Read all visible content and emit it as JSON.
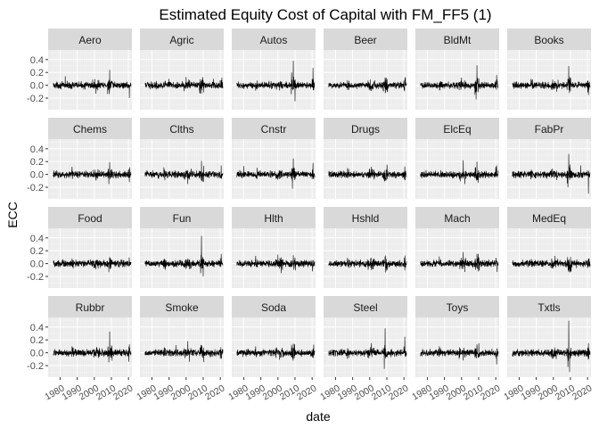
{
  "chart_data": {
    "type": "line",
    "title": "Estimated Equity Cost of Capital with FM_FF5 (1)",
    "xlabel": "date",
    "ylabel": "ECC",
    "xlim": [
      1973,
      2022
    ],
    "ylim": [
      -0.38,
      0.55
    ],
    "x_ticks": [
      1980,
      1990,
      2000,
      2010,
      2020
    ],
    "x_tick_labels": [
      "1980",
      "1990",
      "2000",
      "2010",
      "2020"
    ],
    "y_ticks": [
      -0.2,
      0.0,
      0.2,
      0.4
    ],
    "y_tick_labels": [
      "-0.2",
      "0.0",
      "0.2",
      "0.4"
    ],
    "grid": true,
    "layout": "facet_wrap 4 rows x 6 columns",
    "line_color": "#000000",
    "panels": [
      {
        "name": "Aero",
        "shocks": [
          [
            2009,
            0.24
          ],
          [
            2020.5,
            -0.2
          ],
          [
            1983,
            0.14
          ],
          [
            2001,
            -0.13
          ]
        ]
      },
      {
        "name": "Agric",
        "shocks": [
          [
            2000,
            0.13
          ],
          [
            2009,
            -0.13
          ],
          [
            1990,
            0.1
          ],
          [
            2016,
            0.1
          ]
        ]
      },
      {
        "name": "Autos",
        "shocks": [
          [
            2009,
            0.38
          ],
          [
            2010,
            -0.25
          ],
          [
            2020.5,
            0.27
          ],
          [
            2008,
            0.2
          ]
        ]
      },
      {
        "name": "Beer",
        "shocks": [
          [
            2009,
            0.12
          ],
          [
            2001,
            -0.09
          ],
          [
            1987,
            0.08
          ]
        ]
      },
      {
        "name": "BldMt",
        "shocks": [
          [
            2009,
            0.31
          ],
          [
            2008.5,
            -0.22
          ],
          [
            2000,
            0.12
          ],
          [
            2020.5,
            0.16
          ]
        ]
      },
      {
        "name": "Books",
        "shocks": [
          [
            2009,
            0.3
          ],
          [
            2020.5,
            -0.15
          ],
          [
            1987,
            0.1
          ],
          [
            2002,
            -0.1
          ]
        ]
      },
      {
        "name": "Chems",
        "shocks": [
          [
            2009,
            0.19
          ],
          [
            2008.5,
            -0.15
          ],
          [
            1987,
            0.12
          ],
          [
            2020.5,
            -0.12
          ]
        ]
      },
      {
        "name": "Clths",
        "shocks": [
          [
            2009,
            0.21
          ],
          [
            2001,
            -0.15
          ],
          [
            1987,
            0.11
          ],
          [
            2020.5,
            0.14
          ]
        ]
      },
      {
        "name": "Cnstr",
        "shocks": [
          [
            2009,
            0.25
          ],
          [
            2008.5,
            -0.22
          ],
          [
            2020.5,
            0.18
          ],
          [
            1980,
            0.13
          ]
        ]
      },
      {
        "name": "Drugs",
        "shocks": [
          [
            2001,
            0.12
          ],
          [
            2009,
            -0.1
          ],
          [
            1987,
            0.1
          ]
        ]
      },
      {
        "name": "ElcEq",
        "shocks": [
          [
            2001,
            0.22
          ],
          [
            2009,
            0.2
          ],
          [
            2002,
            -0.15
          ],
          [
            2020.5,
            0.14
          ]
        ]
      },
      {
        "name": "FabPr",
        "shocks": [
          [
            2009,
            0.32
          ],
          [
            2020.5,
            -0.3
          ],
          [
            2008.5,
            -0.2
          ],
          [
            2016,
            0.14
          ]
        ]
      },
      {
        "name": "Food",
        "shocks": [
          [
            2009,
            0.1
          ],
          [
            2001,
            -0.09
          ],
          [
            1987,
            0.08
          ]
        ]
      },
      {
        "name": "Fun",
        "shocks": [
          [
            2009,
            0.43
          ],
          [
            2010,
            -0.2
          ],
          [
            2008.5,
            -0.15
          ],
          [
            2020.5,
            0.15
          ]
        ]
      },
      {
        "name": "Hlth",
        "shocks": [
          [
            2000,
            0.14
          ],
          [
            2002,
            -0.15
          ],
          [
            2009,
            0.13
          ],
          [
            1987,
            0.12
          ]
        ]
      },
      {
        "name": "Hshld",
        "shocks": [
          [
            2009,
            0.11
          ],
          [
            2001,
            -0.1
          ],
          [
            1987,
            0.09
          ]
        ]
      },
      {
        "name": "Mach",
        "shocks": [
          [
            2001,
            0.18
          ],
          [
            2009,
            0.15
          ],
          [
            2002,
            -0.13
          ],
          [
            1987,
            0.11
          ]
        ]
      },
      {
        "name": "MedEq",
        "shocks": [
          [
            2001,
            0.12
          ],
          [
            2009,
            -0.1
          ],
          [
            2020.5,
            0.08
          ]
        ]
      },
      {
        "name": "Rubbr",
        "shocks": [
          [
            2009,
            0.33
          ],
          [
            2008.5,
            -0.15
          ],
          [
            2020.5,
            0.13
          ],
          [
            1987,
            0.1
          ]
        ]
      },
      {
        "name": "Smoke",
        "shocks": [
          [
            2001,
            0.18
          ],
          [
            2002,
            -0.14
          ],
          [
            1994,
            0.12
          ],
          [
            2009,
            0.12
          ]
        ]
      },
      {
        "name": "Soda",
        "shocks": [
          [
            2009,
            0.14
          ],
          [
            2001,
            -0.11
          ],
          [
            1987,
            0.1
          ]
        ]
      },
      {
        "name": "Steel",
        "shocks": [
          [
            2009,
            0.38
          ],
          [
            2008.5,
            -0.25
          ],
          [
            2020.5,
            0.25
          ],
          [
            2001,
            0.15
          ]
        ]
      },
      {
        "name": "Toys",
        "shocks": [
          [
            2009,
            0.13
          ],
          [
            2001,
            -0.12
          ],
          [
            2020.5,
            -0.18
          ],
          [
            1987,
            0.1
          ]
        ]
      },
      {
        "name": "Txtls",
        "shocks": [
          [
            2009,
            0.5
          ],
          [
            2009.5,
            -0.3
          ],
          [
            2008.5,
            -0.22
          ],
          [
            2020.5,
            0.15
          ]
        ]
      }
    ]
  },
  "style": {
    "strip_fill": "#d9d9d9",
    "panel_fill": "#ebebeb",
    "grid_major": "#ffffff",
    "grid_minor": "#f4f4f4",
    "axis_text": "#4d4d4d",
    "strip_text": "#1a1a1a",
    "title_color": "#000000"
  }
}
